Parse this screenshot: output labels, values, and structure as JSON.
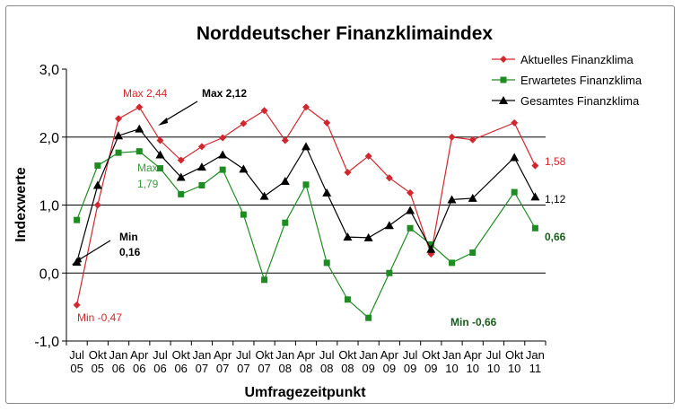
{
  "chart_data": {
    "type": "line",
    "title": "Norddeutscher Finanzklimaindex",
    "xlabel": "Umfragezeitpunkt",
    "ylabel": "Indexwerte",
    "ylim": [
      -1.0,
      3.0
    ],
    "yticks": [
      "-1,0",
      "0,0",
      "1,0",
      "2,0",
      "3,0"
    ],
    "ytick_values": [
      -1,
      0,
      1,
      2,
      3
    ],
    "gridlines": [
      0,
      1,
      2
    ],
    "legend_position": "top-right",
    "categories": [
      [
        "Jul",
        "05"
      ],
      [
        "Okt",
        "05"
      ],
      [
        "Jan",
        "06"
      ],
      [
        "Apr",
        "06"
      ],
      [
        "Jul",
        "06"
      ],
      [
        "Okt",
        "06"
      ],
      [
        "Jan",
        "07"
      ],
      [
        "Apr",
        "07"
      ],
      [
        "Jul",
        "07"
      ],
      [
        "Okt",
        "07"
      ],
      [
        "Jan",
        "08"
      ],
      [
        "Apr",
        "08"
      ],
      [
        "Jul",
        "08"
      ],
      [
        "Okt",
        "08"
      ],
      [
        "Jan",
        "09"
      ],
      [
        "Apr",
        "09"
      ],
      [
        "Jul",
        "09"
      ],
      [
        "Okt",
        "09"
      ],
      [
        "Jan",
        "10"
      ],
      [
        "Apr",
        "10"
      ],
      [
        "Jul",
        "10"
      ],
      [
        "Okt",
        "10"
      ],
      [
        "Jan",
        "11"
      ]
    ],
    "series": [
      {
        "name": "Aktuelles Finanzklima",
        "color": "#d0282e",
        "marker": "diamond",
        "values": [
          -0.47,
          1.0,
          2.27,
          2.44,
          1.95,
          1.66,
          1.86,
          1.99,
          2.2,
          2.39,
          1.95,
          2.44,
          2.21,
          1.48,
          1.72,
          1.4,
          1.18,
          0.28,
          2.0,
          1.96,
          null,
          2.21,
          1.58
        ]
      },
      {
        "name": "Erwartetes Finanzklima",
        "color": "#1e8c22",
        "marker": "square",
        "values": [
          0.78,
          1.58,
          1.77,
          1.79,
          1.54,
          1.16,
          1.29,
          1.52,
          0.86,
          -0.1,
          0.74,
          1.3,
          0.15,
          -0.39,
          -0.66,
          0.0,
          0.66,
          0.42,
          0.15,
          0.3,
          null,
          1.19,
          0.66
        ]
      },
      {
        "name": "Gesamtes Finanzklima",
        "color": "#000000",
        "marker": "triangle",
        "values": [
          0.16,
          1.29,
          2.02,
          2.12,
          1.74,
          1.41,
          1.56,
          1.74,
          1.53,
          1.13,
          1.35,
          1.86,
          1.18,
          0.53,
          0.52,
          0.7,
          0.92,
          0.35,
          1.08,
          1.1,
          null,
          1.7,
          1.12
        ]
      }
    ],
    "annotations": {
      "red_max": "Max 2,44",
      "black_max": "Max 2,12",
      "green_max_1": "Max",
      "green_max_2": "1,79",
      "black_min_1": "Min",
      "black_min_2": "0,16",
      "red_min": "Min -0,47",
      "green_min": "Min -0,66",
      "red_last": "1,58",
      "black_last": "1,12",
      "green_last": "0,66"
    }
  }
}
